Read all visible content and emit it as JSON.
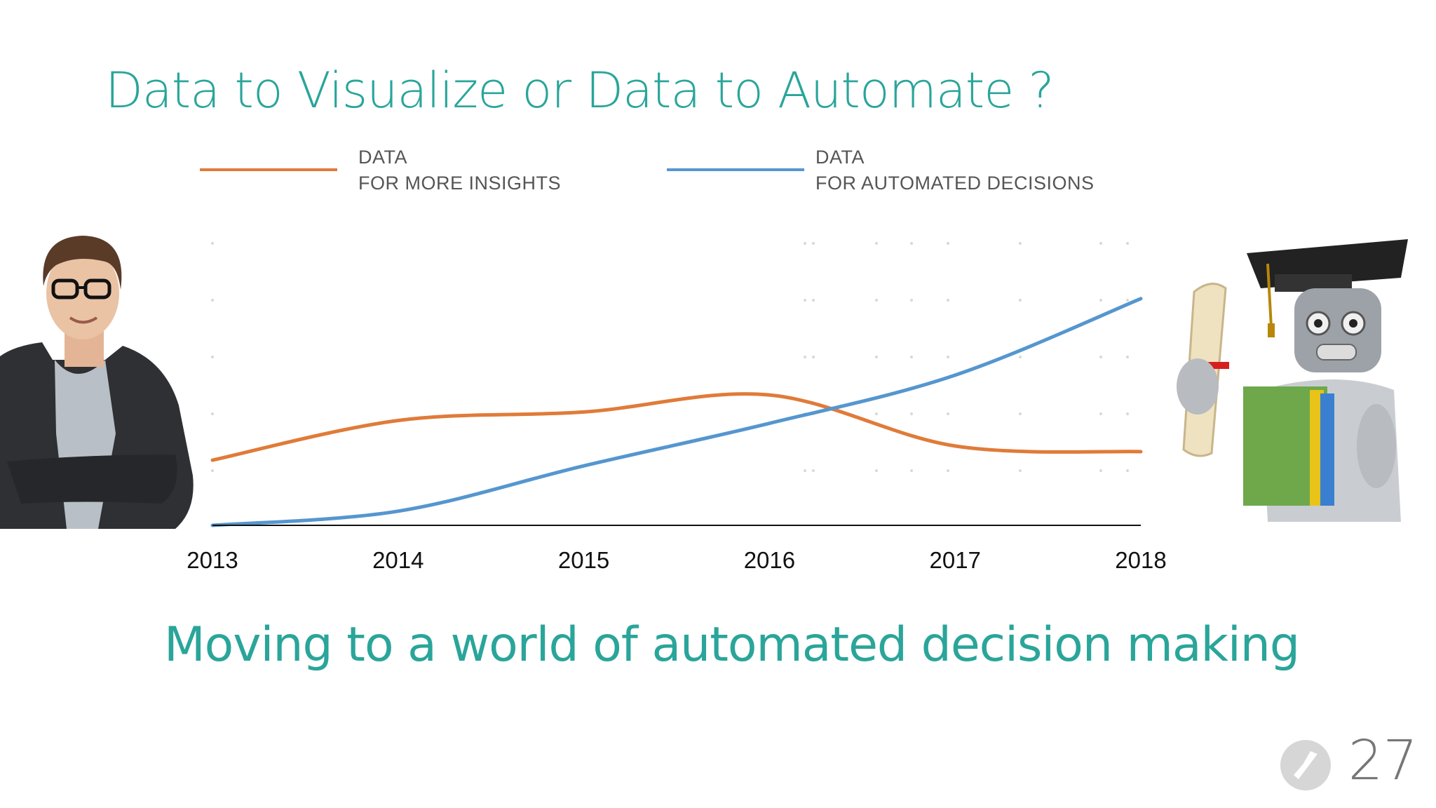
{
  "slide": {
    "title": "Data to Visualize or Data to Automate ?",
    "subtitle": "Moving  to a world of automated decision making",
    "page_number": "27"
  },
  "legend": [
    {
      "line1": "DATA",
      "line2": "FOR MORE INSIGHTS",
      "color": "#e07b39"
    },
    {
      "line1": "DATA",
      "line2": "FOR AUTOMATED DECISIONS",
      "color": "#5596cf"
    }
  ],
  "chart_data": {
    "type": "line",
    "x": [
      "2013",
      "2014",
      "2015",
      "2016",
      "2017",
      "2018"
    ],
    "series": [
      {
        "name": "DATA FOR MORE INSIGHTS",
        "color": "#e07b39",
        "values": [
          1.15,
          1.85,
          2.0,
          2.3,
          1.4,
          1.3
        ]
      },
      {
        "name": "DATA FOR AUTOMATED DECISIONS",
        "color": "#5596cf",
        "values": [
          0.0,
          0.25,
          1.05,
          1.8,
          2.65,
          4.0
        ]
      }
    ],
    "ylim": [
      0,
      5
    ],
    "grid": "dotted",
    "legend_position": "top"
  },
  "colors": {
    "accent": "#2aa59a",
    "axis": "#111111"
  },
  "icons": {
    "logo": "bird-logo-icon"
  }
}
